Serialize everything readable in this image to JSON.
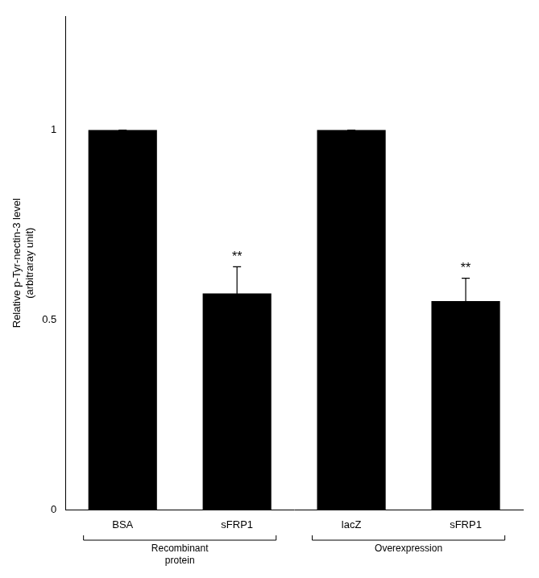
{
  "chart_data": {
    "type": "bar",
    "categories": [
      "BSA",
      "sFRP1",
      "lacZ",
      "sFRP1"
    ],
    "values": [
      1.0,
      0.57,
      1.0,
      0.55
    ],
    "errors": [
      0.0,
      0.07,
      0.0,
      0.06
    ],
    "color": "#000000",
    "y_label": "Relative p-Tyr-nectin-3 level\n(arbitraray unit)",
    "ylim": [
      0,
      1.3
    ],
    "yticks": [
      0,
      0.5,
      1
    ],
    "grid": false,
    "annotations": [
      {
        "text": "**",
        "index": 1
      },
      {
        "text": "**",
        "index": 3
      }
    ],
    "groups": [
      {
        "label": "Recombinant\nprotein",
        "span": [
          0,
          1
        ]
      },
      {
        "label": "Overexpression",
        "span": [
          2,
          3
        ]
      }
    ]
  }
}
